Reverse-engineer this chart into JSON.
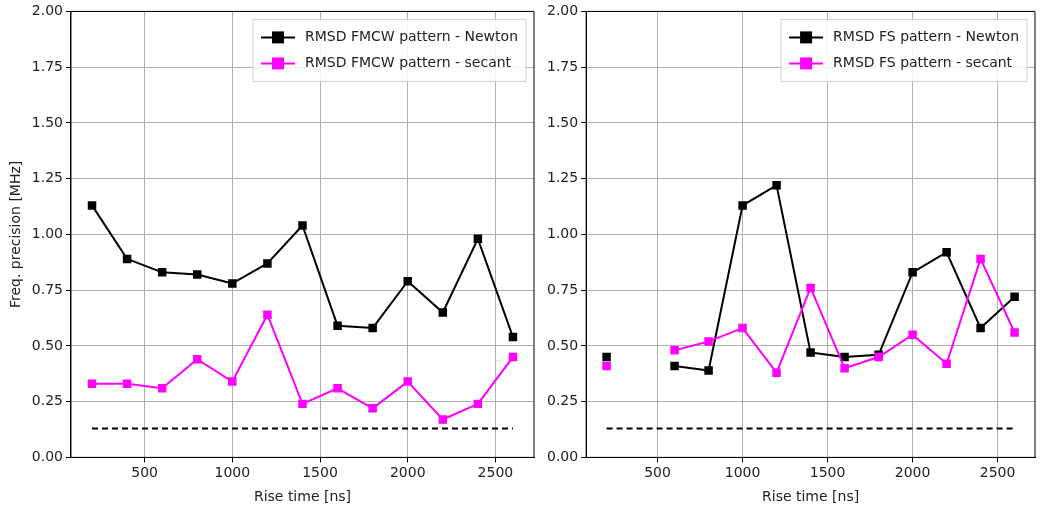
{
  "chart_data": [
    {
      "type": "line",
      "xlabel": "Rise time [ns]",
      "ylabel": "Freq. precision [MHz]",
      "x": [
        200,
        400,
        600,
        800,
        1000,
        1200,
        1400,
        1600,
        1800,
        2000,
        2200,
        2400,
        2600
      ],
      "series": [
        {
          "name": "RMSD FMCW pattern - Newton",
          "color": "#000000",
          "values": [
            1.13,
            0.89,
            0.83,
            0.82,
            0.78,
            0.87,
            1.04,
            0.59,
            0.58,
            0.79,
            0.65,
            0.98,
            0.54
          ]
        },
        {
          "name": "RMSD FMCW pattern - secant",
          "color": "#ff00ff",
          "values": [
            0.33,
            0.33,
            0.31,
            0.44,
            0.34,
            0.64,
            0.24,
            0.31,
            0.22,
            0.34,
            0.17,
            0.24,
            0.45
          ]
        },
        {
          "color": "#000000",
          "values": [
            0.13,
            0.13,
            0.13,
            0.13,
            0.13,
            0.13,
            0.13,
            0.13,
            0.13,
            0.13,
            0.13,
            0.13,
            0.13
          ],
          "line_style": "dashed",
          "marker": "none"
        }
      ],
      "xlim": [
        80,
        2720
      ],
      "ylim": [
        0,
        2
      ],
      "xticks": [
        500,
        1000,
        1500,
        2000,
        2500
      ],
      "yticks": [
        {
          "value": 0,
          "label": "0.00"
        },
        {
          "value": 0.25,
          "label": "0.25"
        },
        {
          "value": 0.5,
          "label": "0.50"
        },
        {
          "value": 0.75,
          "label": "0.75"
        },
        {
          "value": 1,
          "label": "1.00"
        },
        {
          "value": 1.25,
          "label": "1.25"
        },
        {
          "value": 1.5,
          "label": "1.50"
        },
        {
          "value": 1.75,
          "label": "1.75"
        },
        {
          "value": 2,
          "label": "2.00"
        }
      ],
      "grid": true,
      "legend": "top right",
      "marker": "square",
      "line_style": "solid"
    },
    {
      "type": "line",
      "xlabel": "Rise time [ns]",
      "x": [
        200,
        400,
        600,
        800,
        1000,
        1200,
        1400,
        1600,
        1800,
        2000,
        2200,
        2400,
        2600
      ],
      "series": [
        {
          "name": "RMSD FS pattern - Newton",
          "color": "#000000",
          "values": [
            0.45,
            null,
            0.41,
            0.39,
            1.13,
            1.22,
            0.47,
            0.45,
            0.46,
            0.83,
            0.92,
            0.58,
            0.72
          ]
        },
        {
          "name": "RMSD FS pattern - secant",
          "color": "#ff00ff",
          "values": [
            0.41,
            null,
            0.48,
            0.52,
            0.58,
            0.38,
            0.76,
            0.4,
            0.45,
            0.55,
            0.42,
            0.89,
            0.56
          ]
        },
        {
          "color": "#000000",
          "values": [
            0.13,
            0.13,
            0.13,
            0.13,
            0.13,
            0.13,
            0.13,
            0.13,
            0.13,
            0.13,
            0.13,
            0.13,
            0.13
          ],
          "line_style": "dashed",
          "marker": "none"
        }
      ],
      "xlim": [
        80,
        2720
      ],
      "ylim": [
        0,
        2
      ],
      "xticks": [
        500,
        1000,
        1500,
        2000,
        2500
      ],
      "yticks": [
        {
          "value": 0,
          "label": "0.00"
        },
        {
          "value": 0.25,
          "label": "0.25"
        },
        {
          "value": 0.5,
          "label": "0.50"
        },
        {
          "value": 0.75,
          "label": "0.75"
        },
        {
          "value": 1,
          "label": "1.00"
        },
        {
          "value": 1.25,
          "label": "1.25"
        },
        {
          "value": 1.5,
          "label": "1.50"
        },
        {
          "value": 1.75,
          "label": "1.75"
        },
        {
          "value": 2,
          "label": "2.00"
        }
      ],
      "grid": true,
      "legend": "top right",
      "marker": "square",
      "line_style": "solid"
    }
  ]
}
